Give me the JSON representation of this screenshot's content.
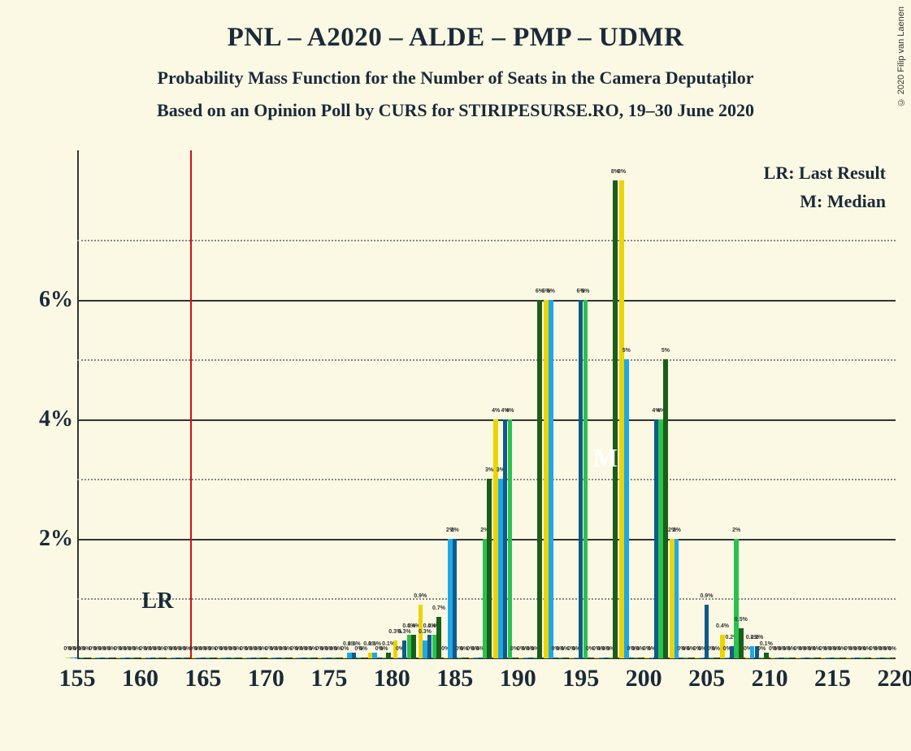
{
  "title": "PNL – A2020 – ALDE – PMP – UDMR",
  "subtitle1": "Probability Mass Function for the Number of Seats in the Camera Deputaților",
  "subtitle2": "Based on an Opinion Poll by CURS for STIRIPESURSE.RO, 19–30 June 2020",
  "copyright": "© 2020 Filip van Laenen",
  "legend_lr": "LR: Last Result",
  "legend_m": "M: Median",
  "lr_text": "LR",
  "m_text": "M",
  "chart": {
    "bg": "#fbf9e3",
    "xlim": [
      155,
      220
    ],
    "ylim": [
      0,
      8.5
    ],
    "x_ticks": [
      155,
      160,
      165,
      170,
      175,
      180,
      185,
      190,
      195,
      200,
      205,
      210,
      215,
      220
    ],
    "y_major": [
      2,
      4,
      6
    ],
    "y_minor": [
      1,
      3,
      5,
      7
    ],
    "y_labels": [
      "2%",
      "4%",
      "6%"
    ],
    "lr_x": 164,
    "series_colors": [
      "#ebd500",
      "#1ea8e6",
      "#0f5a8a",
      "#2ac24e",
      "#1a5e1a"
    ],
    "group_width": 0.92,
    "bar_gap": 0.01,
    "data": [
      {
        "x": 155,
        "v": [
          0,
          0,
          0,
          0,
          0
        ]
      },
      {
        "x": 157,
        "v": [
          0,
          0,
          0,
          0,
          0
        ]
      },
      {
        "x": 159,
        "v": [
          0,
          0,
          0,
          0,
          0
        ]
      },
      {
        "x": 161,
        "v": [
          0,
          0,
          0,
          0,
          0
        ]
      },
      {
        "x": 163,
        "v": [
          0,
          0,
          0,
          0,
          0
        ]
      },
      {
        "x": 165,
        "v": [
          0,
          0,
          0,
          0,
          0
        ]
      },
      {
        "x": 167,
        "v": [
          0,
          0,
          0,
          0,
          0
        ]
      },
      {
        "x": 169,
        "v": [
          0,
          0,
          0,
          0,
          0
        ]
      },
      {
        "x": 171,
        "v": [
          0,
          0,
          0,
          0,
          0
        ]
      },
      {
        "x": 173,
        "v": [
          0,
          0,
          0,
          0,
          0
        ]
      },
      {
        "x": 175,
        "v": [
          0,
          0,
          0,
          0,
          0
        ]
      },
      {
        "x": 177,
        "v": [
          0,
          0.1,
          0.1,
          0,
          0
        ]
      },
      {
        "x": 179,
        "v": [
          0.1,
          0.1,
          0,
          0,
          0.1
        ]
      },
      {
        "x": 181,
        "v": [
          0.3,
          0,
          0.3,
          0.4,
          0.4
        ]
      },
      {
        "x": 183,
        "v": [
          0.9,
          0.3,
          0.4,
          0.4,
          0.7
        ]
      },
      {
        "x": 185,
        "v": [
          0,
          2,
          2,
          0,
          0
        ]
      },
      {
        "x": 187,
        "v": [
          0,
          0,
          0,
          2,
          3
        ]
      },
      {
        "x": 189,
        "v": [
          4,
          3,
          4,
          4,
          0
        ]
      },
      {
        "x": 191,
        "v": [
          0,
          0,
          0,
          0,
          6
        ]
      },
      {
        "x": 193,
        "v": [
          6,
          6,
          0,
          0,
          0
        ]
      },
      {
        "x": 195,
        "v": [
          0,
          0,
          6,
          6,
          0
        ]
      },
      {
        "x": 197,
        "v": [
          0,
          0,
          0,
          0,
          8
        ]
      },
      {
        "x": 199,
        "v": [
          8,
          5,
          0,
          0,
          0
        ]
      },
      {
        "x": 201,
        "v": [
          0,
          0,
          4,
          4,
          5
        ]
      },
      {
        "x": 203,
        "v": [
          2,
          2,
          0,
          0,
          0
        ]
      },
      {
        "x": 205,
        "v": [
          0,
          0,
          0.9,
          0,
          0
        ]
      },
      {
        "x": 207,
        "v": [
          0.4,
          0,
          0.2,
          2,
          0.5
        ]
      },
      {
        "x": 209,
        "v": [
          0,
          0.2,
          0.2,
          0,
          0.1
        ]
      },
      {
        "x": 211,
        "v": [
          0,
          0,
          0,
          0,
          0
        ]
      },
      {
        "x": 213,
        "v": [
          0,
          0,
          0,
          0,
          0
        ]
      },
      {
        "x": 215,
        "v": [
          0,
          0,
          0,
          0,
          0
        ]
      },
      {
        "x": 217,
        "v": [
          0,
          0,
          0,
          0,
          0
        ]
      },
      {
        "x": 219,
        "v": [
          0,
          0,
          0,
          0,
          0
        ]
      }
    ]
  }
}
